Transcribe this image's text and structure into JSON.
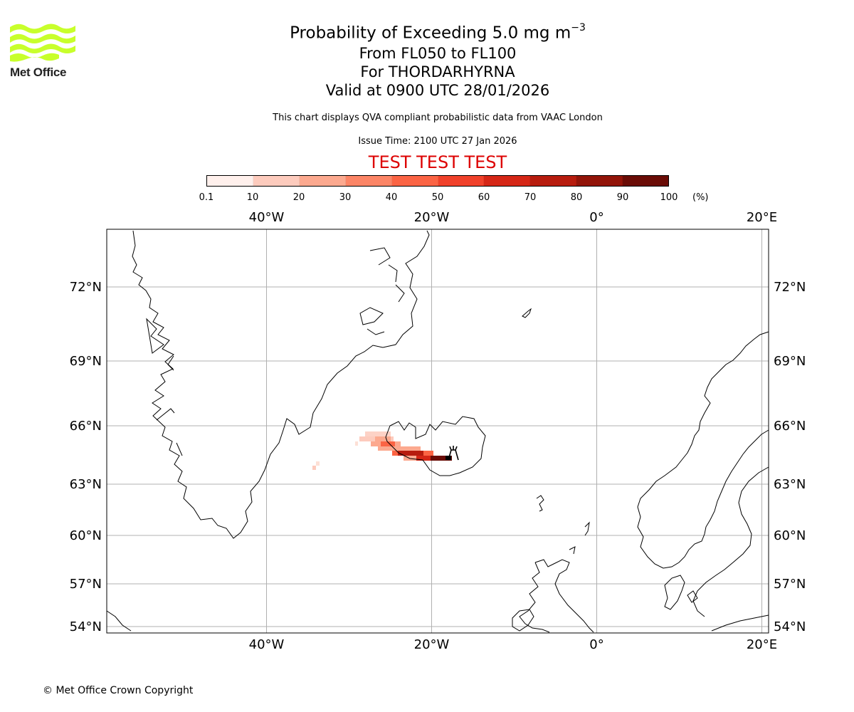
{
  "logo": {
    "text": "Met Office",
    "color": "#c8ff2b"
  },
  "title": {
    "line1_prefix": "Probability of Exceeding 5.0 mg m",
    "line1_exponent": "−3",
    "line2": "From FL050 to FL100",
    "line3": "For THORDARHYRNA",
    "line4": "Valid at 0900 UTC 28/01/2026"
  },
  "description": "This chart displays QVA compliant probabilistic data from VAAC London",
  "issue_time": "Issue Time: 2100 UTC 27 Jan 2026",
  "test_banner": "TEST TEST TEST",
  "test_color": "#dd0000",
  "colorbar": {
    "ticks": [
      "0.1",
      "10",
      "20",
      "30",
      "40",
      "50",
      "60",
      "70",
      "80",
      "90",
      "100"
    ],
    "unit": "(%)",
    "colors": [
      "#fff0ec",
      "#fdcbbd",
      "#fca98f",
      "#fc8566",
      "#fb6444",
      "#f0412a",
      "#d52616",
      "#b71c0e",
      "#921409",
      "#6a0c06"
    ]
  },
  "map": {
    "lon_labels": [
      "40°W",
      "20°W",
      "0°",
      "20°E"
    ],
    "lon_values": [
      -40,
      -20,
      0,
      20
    ],
    "lat_labels": [
      "72°N",
      "69°N",
      "66°N",
      "63°N",
      "60°N",
      "57°N",
      "54°N"
    ],
    "lat_values": [
      72,
      69,
      66,
      63,
      60,
      57,
      54
    ],
    "volcano_lon": -18.2,
    "volcano_lat": 64.4
  },
  "copyright": "© Met Office Crown Copyright"
}
